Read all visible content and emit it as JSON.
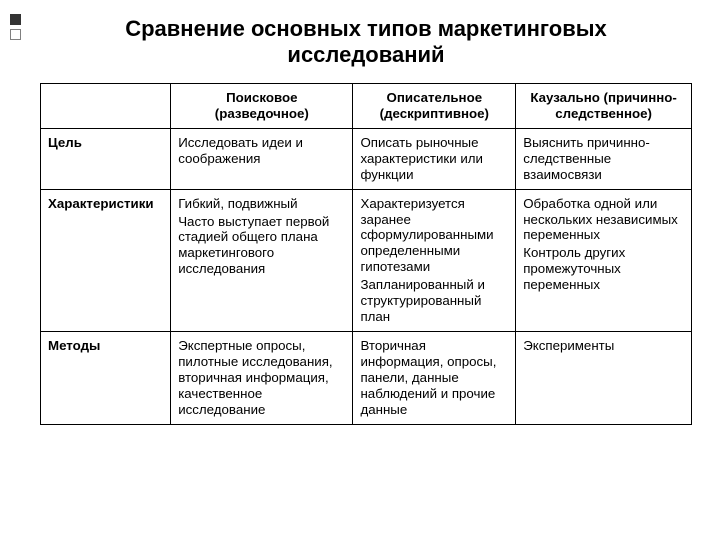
{
  "title": "Сравнение основных типов маркетинговых исследований",
  "colors": {
    "background": "#ffffff",
    "text": "#000000",
    "border": "#000000",
    "decor_dark": "#333333",
    "decor_border": "#808080"
  },
  "table": {
    "columns": [
      "",
      "Поисковое (разведочное)",
      "Описательное (дескриптивное)",
      "Каузально (причинно-следственное)"
    ],
    "rows": [
      {
        "header": "Цель",
        "c1": [
          "Исследовать идеи и соображения"
        ],
        "c2": [
          "Описать рыночные характеристики или функции"
        ],
        "c3": [
          "Выяснить причинно-следственные взаимосвязи"
        ]
      },
      {
        "header": "Характеристики",
        "c1": [
          "Гибкий, подвижный",
          "Часто выступает первой стадией общего плана маркетингового исследования"
        ],
        "c2": [
          "Характеризуется заранее сформулированными определенными гипотезами",
          "Запланированный и структурированный план"
        ],
        "c3": [
          "Обработка одной или нескольких независимых переменных",
          "Контроль других промежуточных переменных"
        ]
      },
      {
        "header": "Методы",
        "c1": [
          "Экспертные опросы, пилотные исследования, вторичная информация, качественное исследование"
        ],
        "c2": [
          "Вторичная информация, опросы, панели, данные наблюдений и прочие данные"
        ],
        "c3": [
          "Эксперименты"
        ]
      }
    ]
  }
}
